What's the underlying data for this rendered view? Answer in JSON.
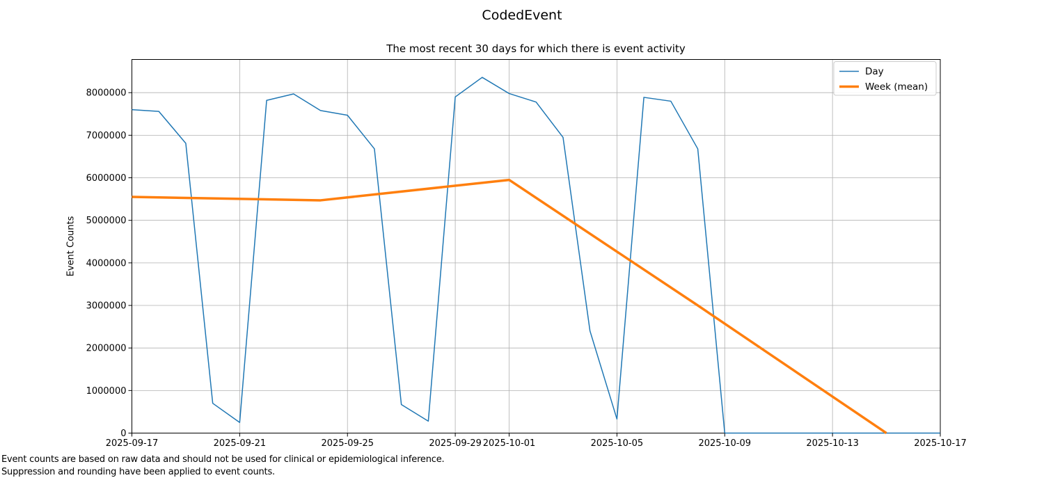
{
  "chart_data": {
    "type": "line",
    "title": "CodedEvent",
    "subtitle": "The most recent 30 days for which there is event activity",
    "xlabel": "",
    "ylabel": "Event Counts",
    "footnotes": [
      "Event counts are based on raw data and should not be used for clinical or epidemiological inference.",
      "Suppression and rounding have been applied to event counts."
    ],
    "x": [
      "2025-09-17",
      "2025-09-18",
      "2025-09-19",
      "2025-09-20",
      "2025-09-21",
      "2025-09-22",
      "2025-09-23",
      "2025-09-24",
      "2025-09-25",
      "2025-09-26",
      "2025-09-27",
      "2025-09-28",
      "2025-09-29",
      "2025-09-30",
      "2025-10-01",
      "2025-10-02",
      "2025-10-03",
      "2025-10-04",
      "2025-10-05",
      "2025-10-06",
      "2025-10-07",
      "2025-10-08",
      "2025-10-09",
      "2025-10-10",
      "2025-10-11",
      "2025-10-12",
      "2025-10-13",
      "2025-10-14",
      "2025-10-15",
      "2025-10-16",
      "2025-10-17"
    ],
    "series": [
      {
        "name": "Day",
        "color": "#1f77b4",
        "width": 1.5,
        "values": [
          7600000,
          7560000,
          6810000,
          700000,
          250000,
          7820000,
          7970000,
          7580000,
          7470000,
          6680000,
          670000,
          280000,
          7900000,
          8360000,
          7980000,
          7780000,
          6950000,
          2400000,
          330000,
          7890000,
          7800000,
          6680000,
          0,
          0,
          0,
          0,
          0,
          0,
          0,
          0,
          0
        ]
      },
      {
        "name": "Week (mean)",
        "color": "#ff7f0e",
        "width": 3.5,
        "x": [
          "2025-09-17",
          "2025-09-24",
          "2025-10-01",
          "2025-10-08",
          "2025-10-15"
        ],
        "values": [
          5550000,
          5470000,
          5950000,
          3000000,
          0
        ]
      }
    ],
    "xticks": [
      "2025-09-17",
      "2025-09-21",
      "2025-09-25",
      "2025-09-29",
      "2025-10-01",
      "2025-10-05",
      "2025-10-09",
      "2025-10-13",
      "2025-10-17"
    ],
    "yticks": [
      0,
      1000000,
      2000000,
      3000000,
      4000000,
      5000000,
      6000000,
      7000000,
      8000000
    ],
    "xlim": [
      "2025-09-17",
      "2025-10-17"
    ],
    "ylim": [
      0,
      8780000
    ],
    "grid": true,
    "legend_position": "upper right",
    "colors": {
      "grid": "#b0b0b0",
      "spine": "#000000",
      "legend_border": "#cccccc",
      "background": "#ffffff"
    }
  }
}
